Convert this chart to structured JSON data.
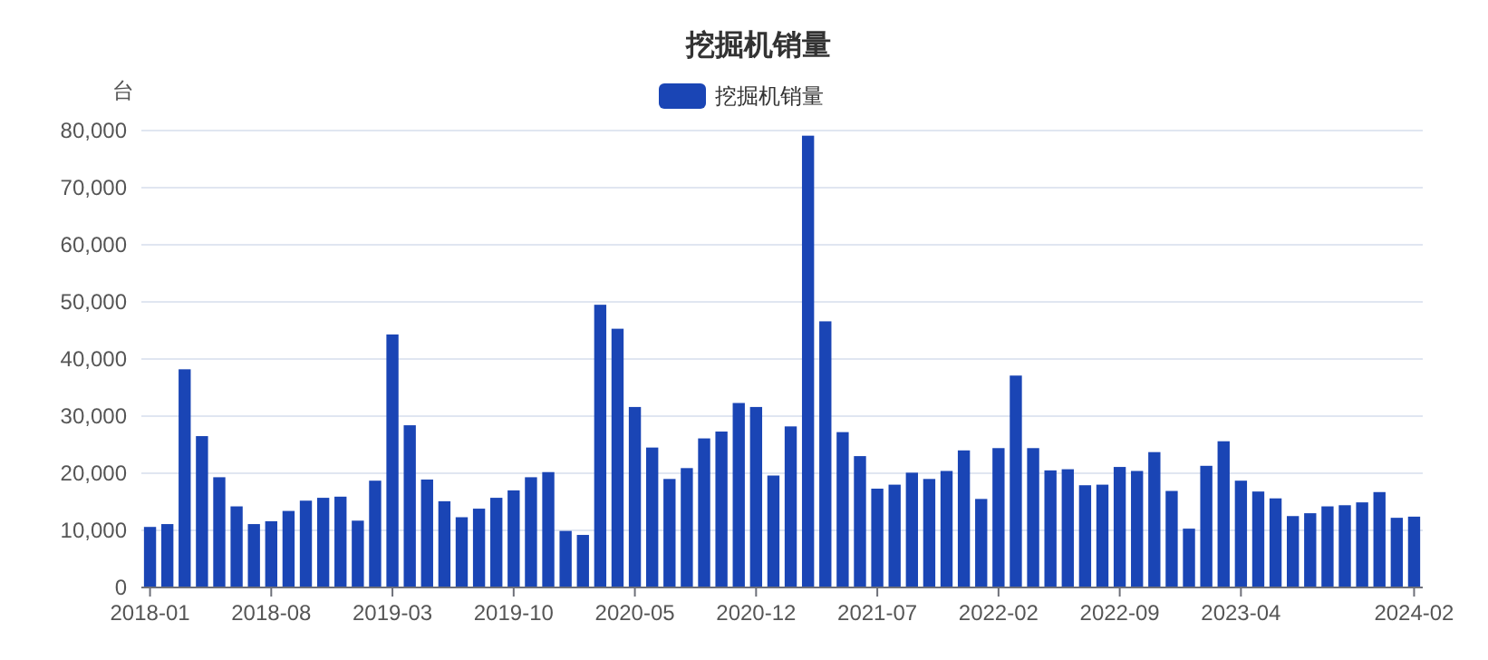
{
  "chart_data": {
    "type": "bar",
    "title": "挖掘机销量",
    "ylabel": "台",
    "legend": "top",
    "grid": "y",
    "categories": [
      "2018-01",
      null,
      null,
      null,
      null,
      null,
      null,
      "2018-08",
      null,
      null,
      null,
      null,
      null,
      null,
      "2019-03",
      null,
      null,
      null,
      null,
      null,
      null,
      "2019-10",
      null,
      null,
      null,
      null,
      null,
      null,
      "2020-05",
      null,
      null,
      null,
      null,
      null,
      null,
      "2020-12",
      null,
      null,
      null,
      null,
      null,
      null,
      "2021-07",
      null,
      null,
      null,
      null,
      null,
      null,
      "2022-02",
      null,
      null,
      null,
      null,
      null,
      null,
      "2022-09",
      null,
      null,
      null,
      null,
      null,
      null,
      "2023-04",
      null,
      null,
      null,
      null,
      null,
      null,
      null,
      null,
      null,
      "2024-02"
    ],
    "ylim": [
      0,
      80000
    ],
    "yticks": [
      {
        "value": 0,
        "label": "0"
      },
      {
        "value": 10000,
        "label": "10,000"
      },
      {
        "value": 20000,
        "label": "20,000"
      },
      {
        "value": 30000,
        "label": "30,000"
      },
      {
        "value": 40000,
        "label": "40,000"
      },
      {
        "value": 50000,
        "label": "50,000"
      },
      {
        "value": 60000,
        "label": "60,000"
      },
      {
        "value": 70000,
        "label": "70,000"
      },
      {
        "value": 80000,
        "label": "80,000"
      }
    ],
    "series": [
      {
        "name": "挖掘机销量",
        "color": "#1a45b5",
        "values": [
          10600,
          11100,
          38200,
          26500,
          19300,
          14200,
          11100,
          11600,
          13400,
          15200,
          15700,
          15900,
          11700,
          18700,
          44300,
          28400,
          18900,
          15100,
          12300,
          13800,
          15700,
          17000,
          19300,
          20200,
          9900,
          9200,
          49500,
          45300,
          31600,
          24500,
          19000,
          20900,
          26100,
          27300,
          32300,
          31600,
          19600,
          28200,
          79100,
          46600,
          27200,
          23000,
          17300,
          18000,
          20100,
          19000,
          20400,
          24000,
          15500,
          24400,
          37100,
          24400,
          20500,
          20700,
          17900,
          18000,
          21100,
          20400,
          23700,
          16900,
          10300,
          21300,
          25600,
          18700,
          16800,
          15600,
          12500,
          13000,
          14200,
          14400,
          14900,
          16700,
          12200,
          12400
        ]
      }
    ]
  }
}
